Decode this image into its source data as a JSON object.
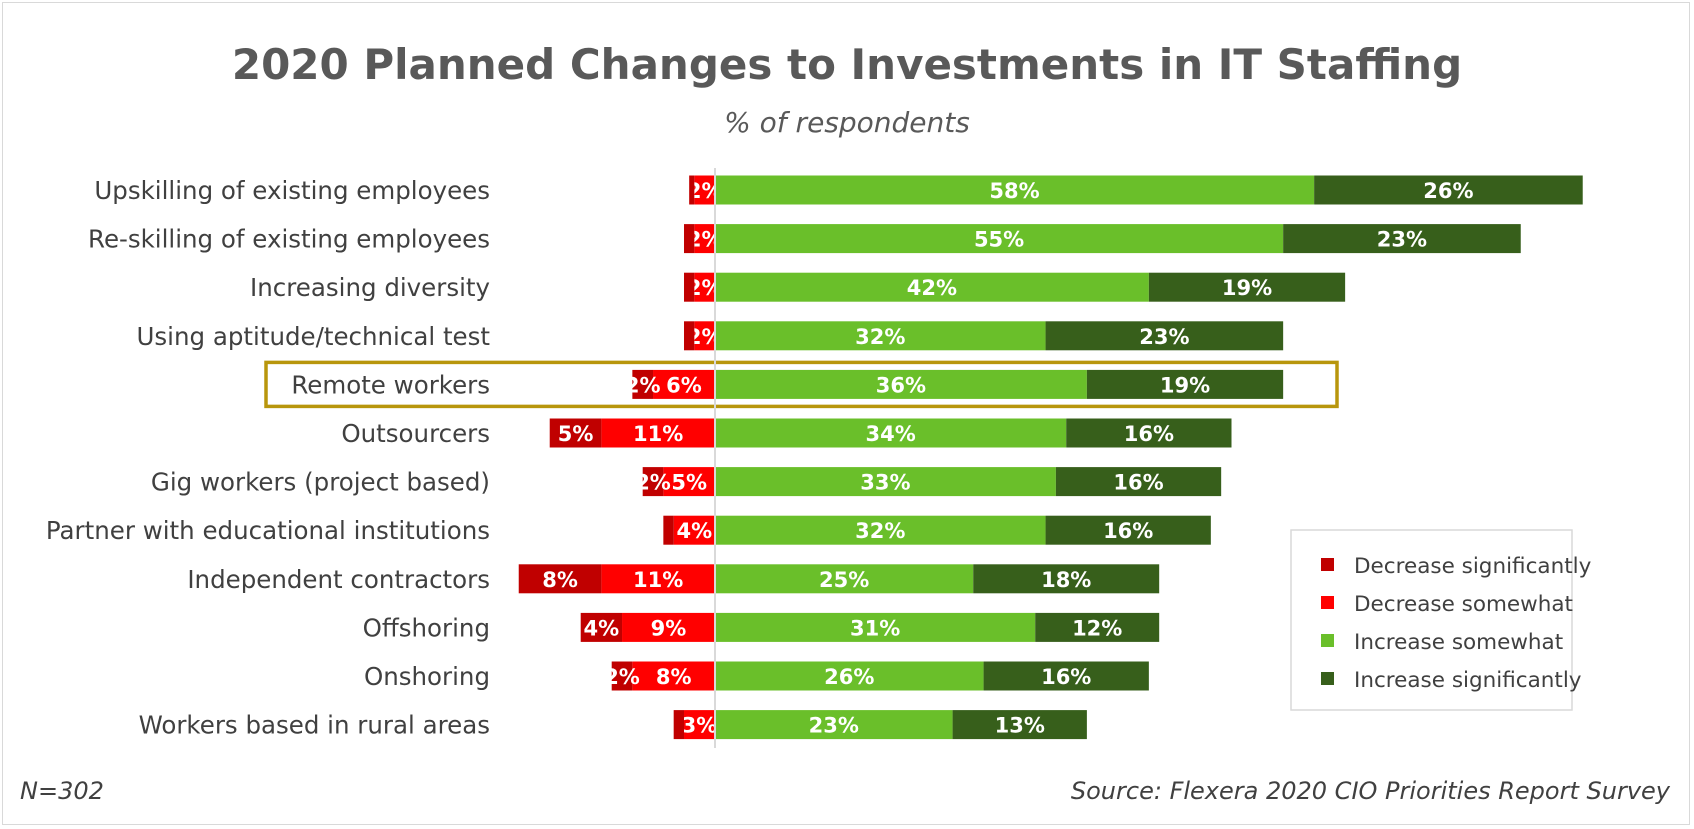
{
  "chart_data": {
    "type": "bar",
    "orientation": "horizontal",
    "stacking": "diverging",
    "title": "2020 Planned Changes to Investments in IT Staffing",
    "subtitle": "% of respondents",
    "categories": [
      "Upskilling of existing employees",
      "Re-skilling of existing employees",
      "Increasing diversity",
      "Using aptitude/technical test",
      "Remote workers",
      "Outsourcers",
      "Gig workers (project based)",
      "Partner with educational institutions",
      "Independent contractors",
      "Offshoring",
      "Onshoring",
      "Workers based in rural areas"
    ],
    "highlighted_category": "Remote workers",
    "series": [
      {
        "name": "Decrease significantly",
        "color": "#c00000",
        "direction": "negative",
        "values": [
          0.5,
          1,
          1,
          1,
          2,
          5,
          2,
          1,
          8,
          4,
          2,
          1
        ],
        "labels": [
          "",
          "",
          "",
          "",
          "2%",
          "5%",
          "2%",
          "",
          "8%",
          "4%",
          "2%",
          ""
        ]
      },
      {
        "name": "Decrease somewhat",
        "color": "#ff0000",
        "direction": "negative",
        "values": [
          2,
          2,
          2,
          2,
          6,
          11,
          5,
          4,
          11,
          9,
          8,
          3
        ],
        "labels": [
          "2%",
          "2%",
          "2%",
          "2%",
          "6%",
          "11%",
          "5%",
          "4%",
          "11%",
          "9%",
          "8%",
          "3%"
        ]
      },
      {
        "name": "Increase somewhat",
        "color": "#6abf2a",
        "direction": "positive",
        "values": [
          58,
          55,
          42,
          32,
          36,
          34,
          33,
          32,
          25,
          31,
          26,
          23
        ],
        "labels": [
          "58%",
          "55%",
          "42%",
          "32%",
          "36%",
          "34%",
          "33%",
          "32%",
          "25%",
          "31%",
          "26%",
          "23%"
        ]
      },
      {
        "name": "Increase significantly",
        "color": "#375f1b",
        "direction": "positive",
        "values": [
          26,
          23,
          19,
          23,
          19,
          16,
          16,
          16,
          18,
          12,
          16,
          13
        ],
        "labels": [
          "26%",
          "23%",
          "19%",
          "23%",
          "19%",
          "16%",
          "16%",
          "16%",
          "18%",
          "12%",
          "16%",
          "13%"
        ]
      }
    ],
    "legend_position": "bottom-right",
    "grid": false,
    "highlight_color": "#b8960c",
    "axis_color": "#d9d9d9"
  },
  "notes": {
    "sample_size": "N=302",
    "source": "Source: Flexera 2020 CIO Priorities Report Survey"
  }
}
